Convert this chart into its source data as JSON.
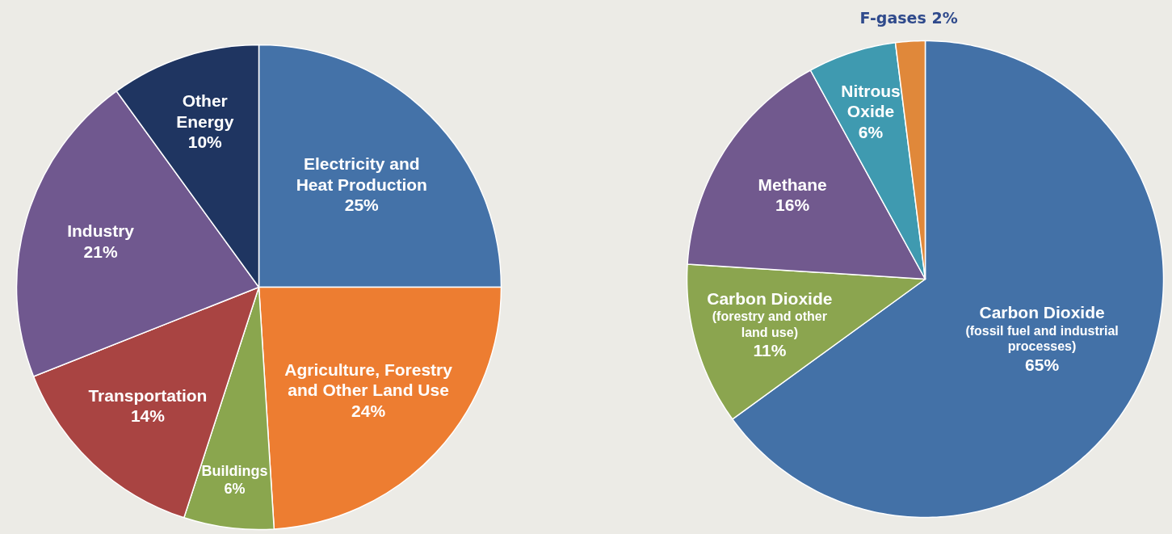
{
  "chart_data": [
    {
      "type": "pie",
      "categories": [
        "Electricity and\nHeat Production",
        "Agriculture, Forestry\nand Other Land Use",
        "Buildings",
        "Transportation",
        "Industry",
        "Other\nEnergy"
      ],
      "values": [
        25,
        24,
        6,
        14,
        21,
        10
      ],
      "value_labels": [
        "25%",
        "24%",
        "6%",
        "14%",
        "21%",
        "10%"
      ],
      "colors": [
        "#4472a8",
        "#ed7d31",
        "#8aa64e",
        "#a94442",
        "#70588f",
        "#1f3561"
      ]
    },
    {
      "type": "pie",
      "categories": [
        "Carbon Dioxide\n(fossil fuel and industrial\nprocesses)",
        "Carbon Dioxide\n(forestry and other\nland use)",
        "Methane",
        "Nitrous\nOxide",
        "F-gases"
      ],
      "values": [
        65,
        11,
        16,
        6,
        2
      ],
      "value_labels": [
        "65%",
        "11%",
        "16%",
        "6%",
        "2%"
      ],
      "colors": [
        "#4371a7",
        "#8ba54f",
        "#71598e",
        "#3f9ab0",
        "#e0883a"
      ]
    }
  ]
}
